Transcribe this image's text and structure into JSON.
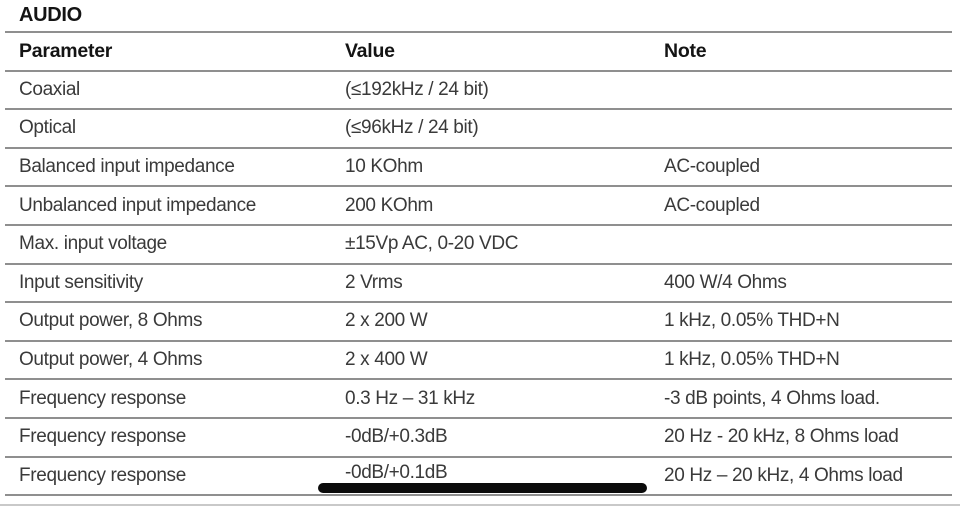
{
  "page": {
    "title": "AUDIO"
  },
  "table": {
    "headers": {
      "parameter": "Parameter",
      "value": "Value",
      "note": "Note"
    },
    "rows": [
      {
        "parameter": "Coaxial",
        "value": "(≤192kHz / 24 bit)",
        "note": ""
      },
      {
        "parameter": "Optical",
        "value": "(≤96kHz / 24 bit)",
        "note": ""
      },
      {
        "parameter": "Balanced input impedance",
        "value": "10 KOhm",
        "note": "AC-coupled"
      },
      {
        "parameter": "Unbalanced input impedance",
        "value": "200 KOhm",
        "note": "AC-coupled"
      },
      {
        "parameter": "Max. input voltage",
        "value": "±15Vp AC, 0-20 VDC",
        "note": ""
      },
      {
        "parameter": "Input sensitivity",
        "value": "2 Vrms",
        "note": "400 W/4 Ohms"
      },
      {
        "parameter": "Output power, 8 Ohms",
        "value": "2 x 200 W",
        "note": "1 kHz, 0.05% THD+N"
      },
      {
        "parameter": "Output power, 4 Ohms",
        "value": "2 x 400 W",
        "note": "1 kHz, 0.05% THD+N"
      },
      {
        "parameter": "Frequency response",
        "value": "0.3 Hz – 31 kHz",
        "note": "-3 dB points, 4 Ohms load."
      },
      {
        "parameter": "Frequency response",
        "value": "-0dB/+0.3dB",
        "note": "20 Hz - 20 kHz, 8 Ohms load"
      },
      {
        "parameter": "Frequency response",
        "value": "-0dB/+0.1dB",
        "note": "20 Hz – 20 kHz, 4 Ohms load"
      }
    ]
  },
  "colors": {
    "text": "#3a3a3a",
    "heading": "#141414",
    "rule": "#8f8f8f",
    "marker": "#0b0b0b",
    "background": "#ffffff",
    "footer_rule": "#c9c9c9"
  }
}
